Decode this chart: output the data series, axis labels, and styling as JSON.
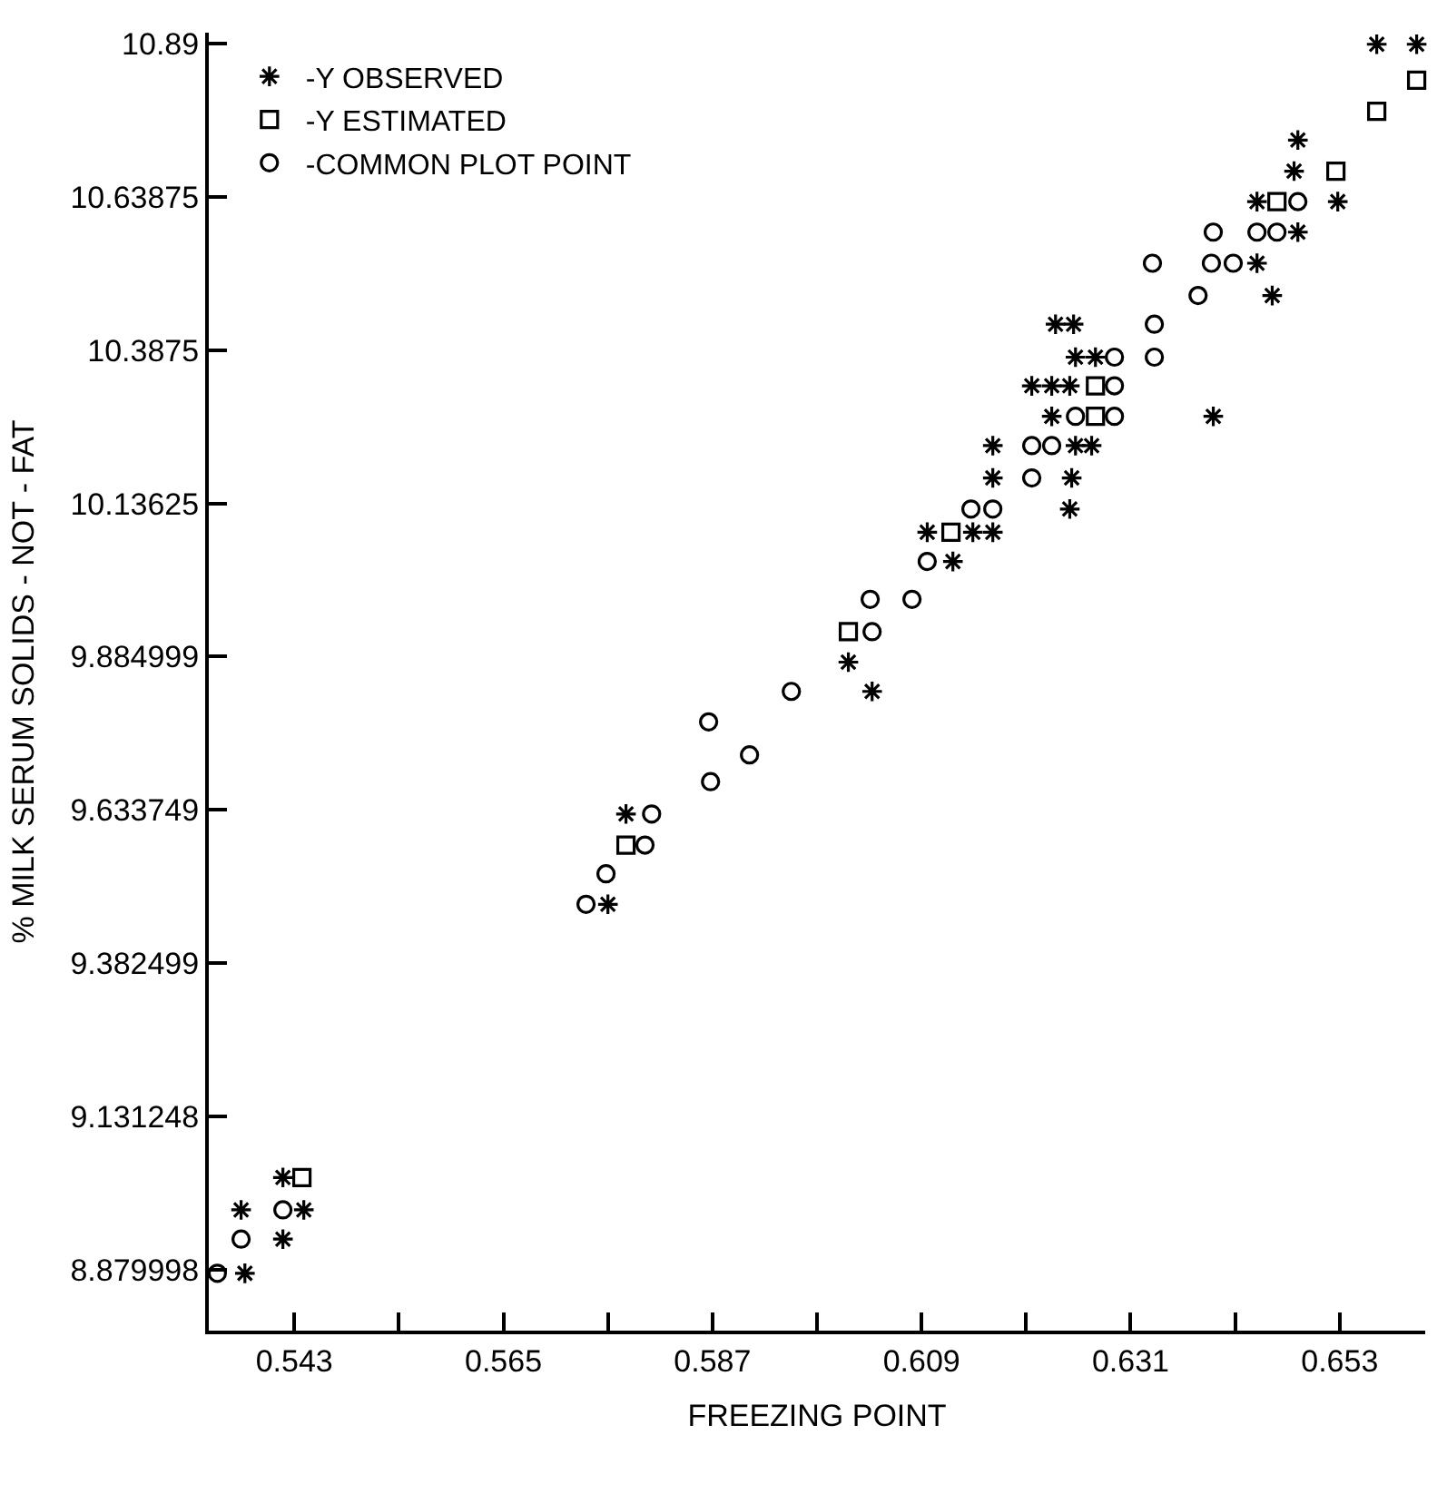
{
  "chart_data": {
    "type": "scatter",
    "xlabel": "FREEZING POINT",
    "ylabel": "% MILK SERUM SOLIDS - NOT - FAT",
    "xlim": [
      0.534,
      0.662
    ],
    "ylim": [
      8.78,
      10.908
    ],
    "xticks": [
      0.543,
      {
        "value": 0.554,
        "label": null
      },
      0.565,
      {
        "value": 0.576,
        "label": null
      },
      0.587,
      {
        "value": 0.598,
        "label": null
      },
      0.609,
      {
        "value": 0.62,
        "label": null
      },
      0.631,
      {
        "value": 0.642,
        "label": null
      },
      0.653
    ],
    "yticks": [
      8.879998,
      9.131248,
      9.382499,
      9.633749,
      9.884999,
      10.13625,
      10.3875,
      10.63875,
      10.89
    ],
    "grid": false,
    "legend": "top left",
    "series": [
      {
        "name": "-Y OBSERVED",
        "color": "#000000",
        "marker": "cross",
        "x": [
          0.5378,
          0.5418,
          0.5374,
          0.544,
          0.5418,
          0.576,
          0.5779,
          0.6013,
          0.6038,
          0.6123,
          0.6096,
          0.6144,
          0.6165,
          0.6246,
          0.6165,
          0.6248,
          0.6165,
          0.6252,
          0.6269,
          0.6227,
          0.6397,
          0.6206,
          0.6227,
          0.6246,
          0.6252,
          0.6273,
          0.6231,
          0.625,
          0.6459,
          0.6443,
          0.6486,
          0.6443,
          0.6528,
          0.6482,
          0.6486,
          0.6569,
          0.6611
        ],
        "values": [
          8.874,
          8.93,
          8.978,
          8.978,
          9.031,
          9.479,
          9.627,
          9.876,
          9.828,
          10.041,
          10.089,
          10.089,
          10.089,
          10.127,
          10.178,
          10.178,
          10.231,
          10.231,
          10.231,
          10.279,
          10.279,
          10.329,
          10.329,
          10.329,
          10.376,
          10.376,
          10.43,
          10.43,
          10.477,
          10.53,
          10.581,
          10.631,
          10.631,
          10.681,
          10.732,
          10.889,
          10.889
        ]
      },
      {
        "name": "-Y ESTIMATED",
        "color": "#000000",
        "marker": "square",
        "x": [
          0.5438,
          0.5779,
          0.6013,
          0.6121,
          0.6273,
          0.6273,
          0.6464,
          0.6526,
          0.6569,
          0.6611
        ],
        "values": [
          9.031,
          9.576,
          9.926,
          10.089,
          10.279,
          10.329,
          10.631,
          10.681,
          10.779,
          10.83
        ]
      },
      {
        "name": "-COMMON PLOT POINT",
        "color": "#000000",
        "marker": "circle",
        "x": [
          0.5349,
          0.5374,
          0.5418,
          0.5737,
          0.5758,
          0.5799,
          0.5806,
          0.5868,
          0.5909,
          0.5866,
          0.5953,
          0.6038,
          0.6036,
          0.608,
          0.6096,
          0.6142,
          0.6165,
          0.6206,
          0.6206,
          0.6227,
          0.6252,
          0.6293,
          0.6293,
          0.6293,
          0.6335,
          0.6335,
          0.6381,
          0.6333,
          0.6395,
          0.6418,
          0.6397,
          0.6443,
          0.6464,
          0.6486
        ],
        "values": [
          8.874,
          8.93,
          8.978,
          9.479,
          9.529,
          9.576,
          9.627,
          9.68,
          9.724,
          9.778,
          9.828,
          9.926,
          9.979,
          9.979,
          10.041,
          10.127,
          10.127,
          10.178,
          10.231,
          10.231,
          10.279,
          10.279,
          10.329,
          10.376,
          10.376,
          10.43,
          10.477,
          10.53,
          10.53,
          10.53,
          10.581,
          10.581,
          10.581,
          10.631
        ]
      }
    ]
  }
}
